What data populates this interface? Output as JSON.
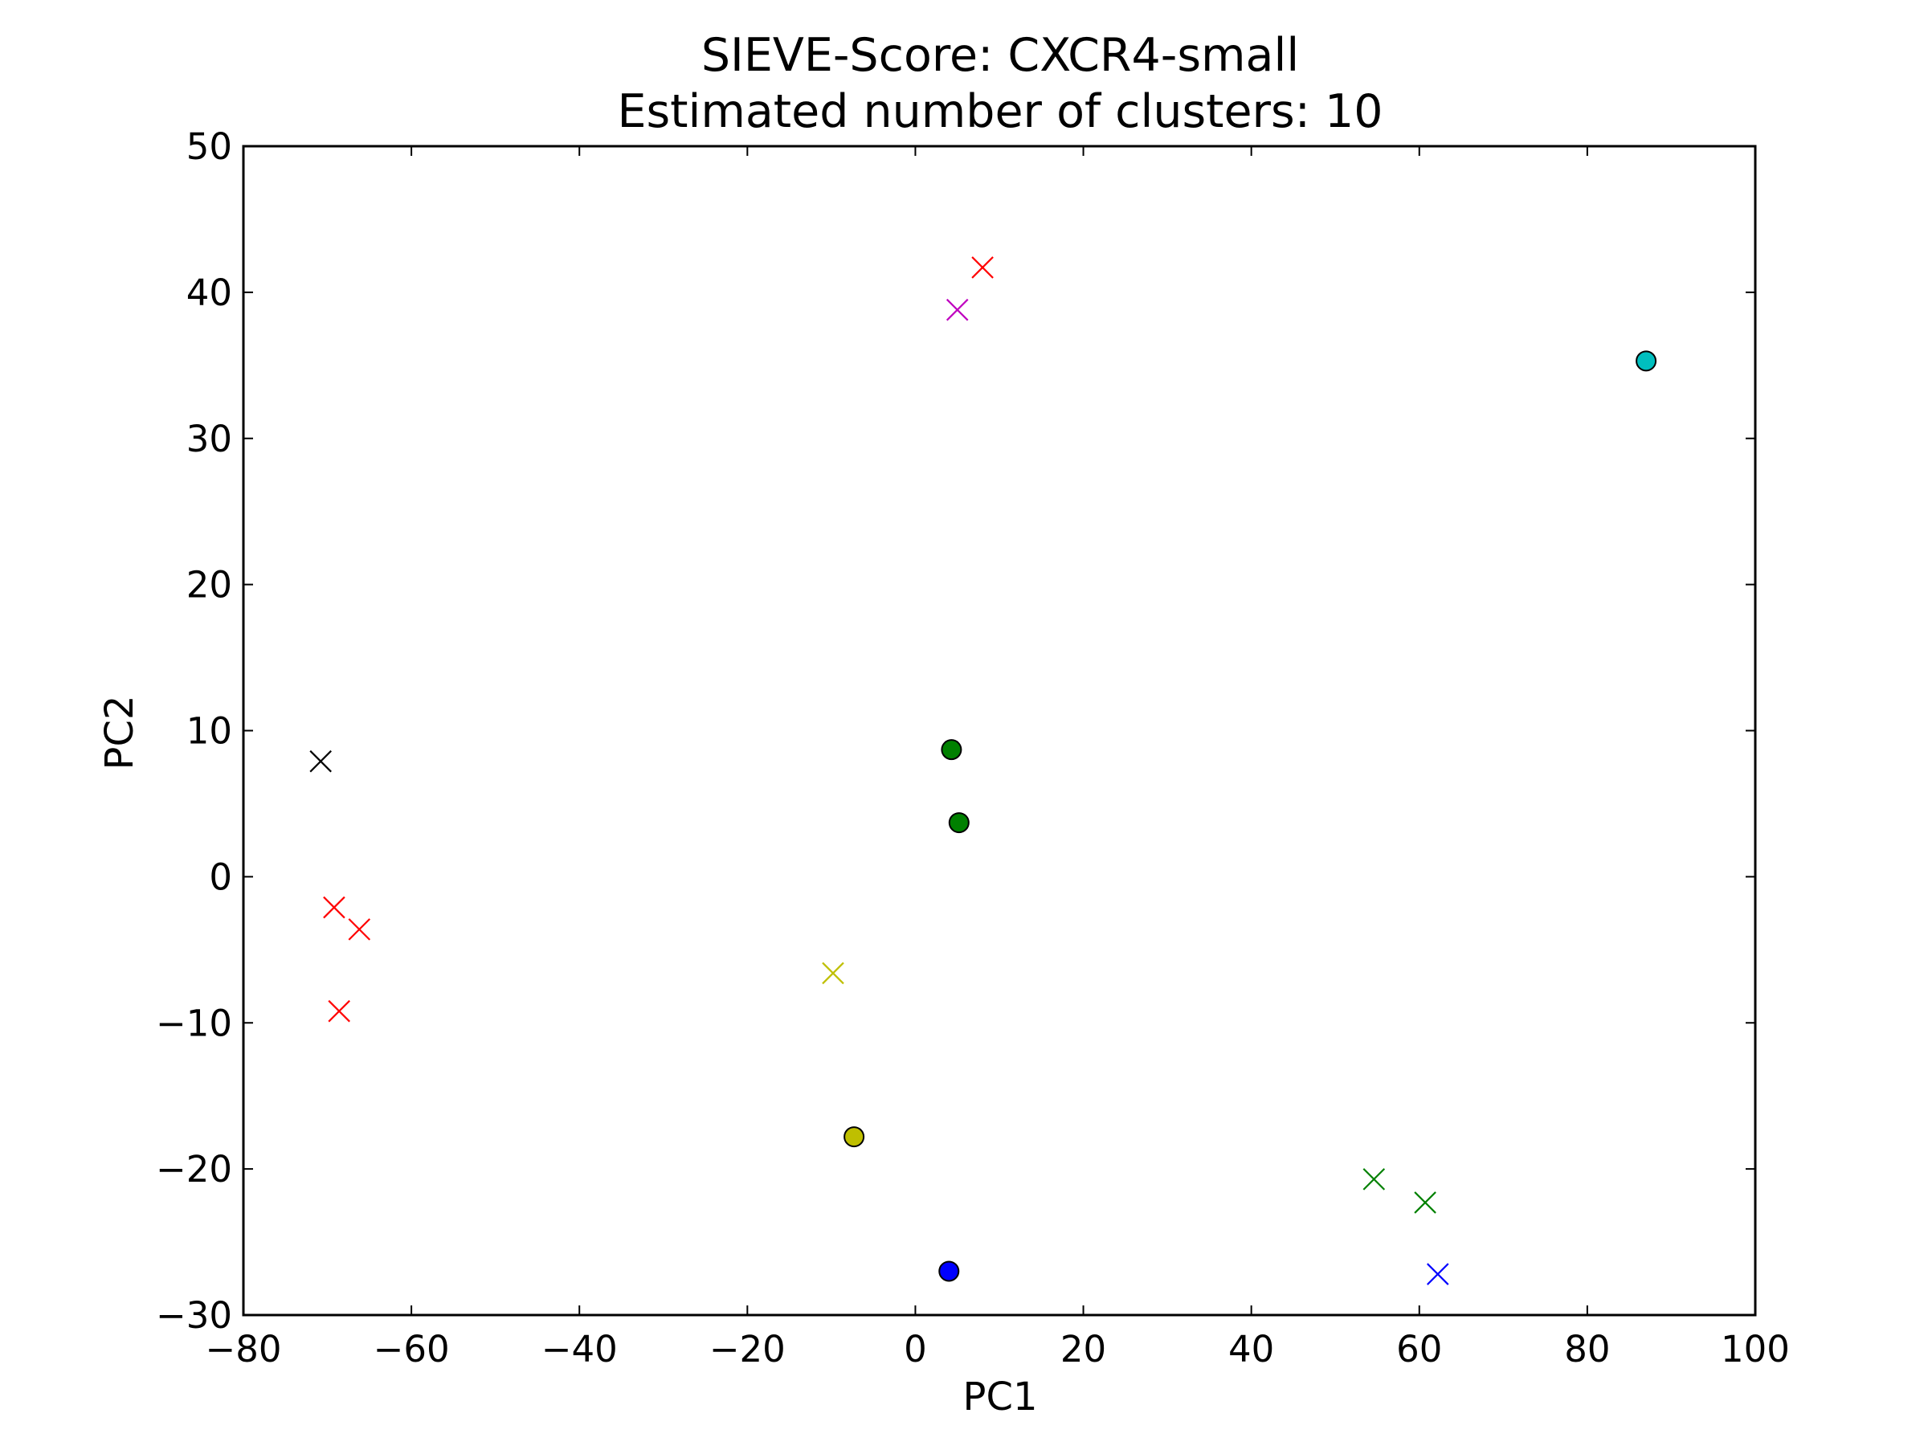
{
  "chart_data": {
    "type": "scatter",
    "title_lines": [
      "SIEVE-Score: CXCR4-small",
      "Estimated number of clusters: 10"
    ],
    "xlabel": "PC1",
    "ylabel": "PC2",
    "xlim": [
      -80,
      100
    ],
    "ylim": [
      -30,
      50
    ],
    "xticks": [
      -80,
      -60,
      -40,
      -20,
      0,
      20,
      40,
      60,
      80,
      100
    ],
    "xtick_labels": [
      "−80",
      "−60",
      "−40",
      "−20",
      "0",
      "20",
      "40",
      "60",
      "80",
      "100"
    ],
    "yticks": [
      -30,
      -20,
      -10,
      0,
      10,
      20,
      30,
      40,
      50
    ],
    "ytick_labels": [
      "−30",
      "−20",
      "−10",
      "0",
      "10",
      "20",
      "30",
      "40",
      "50"
    ],
    "grid": false,
    "points": [
      {
        "x": -70.8,
        "y": 7.9,
        "marker": "x",
        "color": "#000000"
      },
      {
        "x": -69.2,
        "y": -2.1,
        "marker": "x",
        "color": "#ff0000"
      },
      {
        "x": -66.2,
        "y": -3.6,
        "marker": "x",
        "color": "#ff0000"
      },
      {
        "x": -68.6,
        "y": -9.2,
        "marker": "x",
        "color": "#ff0000"
      },
      {
        "x": 8.0,
        "y": 41.7,
        "marker": "x",
        "color": "#ff0000"
      },
      {
        "x": 5.0,
        "y": 38.8,
        "marker": "x",
        "color": "#bf00bf"
      },
      {
        "x": -9.8,
        "y": -6.6,
        "marker": "x",
        "color": "#bfbf00"
      },
      {
        "x": 54.6,
        "y": -20.7,
        "marker": "x",
        "color": "#008000"
      },
      {
        "x": 60.7,
        "y": -22.3,
        "marker": "x",
        "color": "#008000"
      },
      {
        "x": 62.2,
        "y": -27.2,
        "marker": "x",
        "color": "#0000ff"
      },
      {
        "x": 87.0,
        "y": 35.3,
        "marker": "o",
        "color": "#00bfbf"
      },
      {
        "x": 4.3,
        "y": 8.7,
        "marker": "o",
        "color": "#008000"
      },
      {
        "x": 5.2,
        "y": 3.7,
        "marker": "o",
        "color": "#008000"
      },
      {
        "x": -7.3,
        "y": -17.8,
        "marker": "o",
        "color": "#bfbf00"
      },
      {
        "x": 4.0,
        "y": -27.0,
        "marker": "o",
        "color": "#0000ff"
      }
    ]
  }
}
